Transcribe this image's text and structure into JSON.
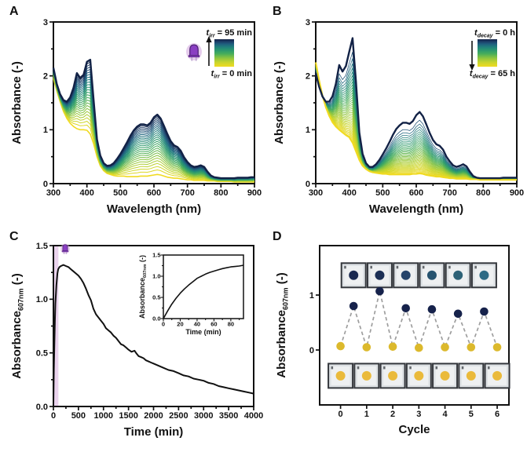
{
  "panels": {
    "a": {
      "letter": "A"
    },
    "b": {
      "letter": "B"
    },
    "c": {
      "letter": "C"
    },
    "d": {
      "letter": "D"
    }
  },
  "colors": {
    "axis": "#111111",
    "curve_black": "#111111",
    "dash_gray": "#9e9e9e",
    "dark_dot": "#16224b",
    "yellow_dot": "#dcb92c",
    "band_purple": "#d9aede",
    "led_body": "#8a3fc2",
    "led_outline": "#4f2376",
    "led_glow": "#cfa3dd",
    "photo_frame": "#34373c",
    "photo_bg": "#dde1e4",
    "photo_inner": "#eef0f1",
    "colormap_stops": [
      [
        0.0,
        "#f0da21"
      ],
      [
        0.16,
        "#c8d52c"
      ],
      [
        0.32,
        "#8ac441"
      ],
      [
        0.47,
        "#47ad5b"
      ],
      [
        0.6,
        "#2b986e"
      ],
      [
        0.72,
        "#207f7c"
      ],
      [
        0.83,
        "#1f5d7e"
      ],
      [
        0.92,
        "#1b3c66"
      ],
      [
        1.0,
        "#122246"
      ]
    ]
  },
  "chart_data": [
    {
      "id": "A",
      "type": "line",
      "mode": "growth",
      "xlabel": "Wavelength (nm)",
      "ylabel_main": "Absorbance",
      "ylabel_sub": "",
      "ylabel_tail": "(-)",
      "xlim": [
        300,
        900
      ],
      "ylim": [
        0,
        3
      ],
      "xticks": {
        "values": [
          300,
          400,
          500,
          600,
          700,
          800,
          900
        ],
        "labels": [
          "300",
          "400",
          "500",
          "600",
          "700",
          "800",
          "900"
        ]
      },
      "yticks": {
        "values": [
          0,
          1,
          2,
          3
        ],
        "labels": [
          "0",
          "1",
          "2",
          "3"
        ]
      },
      "xminor": 50,
      "yminor": 0.5,
      "legend": {
        "var": "t",
        "sub": "irr",
        "top_value": "= 95 min",
        "bottom_value": "= 0 min",
        "arrow": "up",
        "led": true
      },
      "n_curves": 26,
      "gamma": 0.8,
      "wavelengths": [
        300,
        310,
        320,
        330,
        340,
        350,
        360,
        370,
        380,
        390,
        400,
        410,
        420,
        430,
        440,
        450,
        460,
        470,
        480,
        490,
        500,
        510,
        520,
        530,
        540,
        550,
        560,
        570,
        580,
        590,
        600,
        610,
        620,
        630,
        640,
        650,
        660,
        670,
        680,
        690,
        700,
        710,
        720,
        730,
        740,
        750,
        760,
        770,
        780,
        790,
        800,
        810,
        820,
        830,
        840,
        850,
        860,
        870,
        880,
        890,
        900
      ],
      "spectrum_initial": [
        1.95,
        1.72,
        1.52,
        1.34,
        1.21,
        1.12,
        1.06,
        1.02,
        1.0,
        1.0,
        0.99,
        0.92,
        0.74,
        0.5,
        0.33,
        0.24,
        0.19,
        0.17,
        0.15,
        0.14,
        0.14,
        0.14,
        0.13,
        0.13,
        0.13,
        0.13,
        0.14,
        0.14,
        0.14,
        0.15,
        0.16,
        0.17,
        0.16,
        0.14,
        0.12,
        0.11,
        0.1,
        0.1,
        0.09,
        0.08,
        0.07,
        0.07,
        0.06,
        0.06,
        0.06,
        0.06,
        0.05,
        0.05,
        0.05,
        0.04,
        0.04,
        0.04,
        0.04,
        0.04,
        0.03,
        0.03,
        0.03,
        0.03,
        0.03,
        0.03,
        0.03
      ],
      "spectrum_final": [
        2.15,
        1.85,
        1.66,
        1.55,
        1.52,
        1.6,
        1.78,
        2.05,
        1.96,
        2.02,
        2.26,
        2.3,
        1.55,
        0.82,
        0.52,
        0.38,
        0.33,
        0.34,
        0.38,
        0.46,
        0.55,
        0.66,
        0.77,
        0.89,
        0.99,
        1.06,
        1.1,
        1.1,
        1.08,
        1.13,
        1.23,
        1.28,
        1.21,
        1.07,
        0.92,
        0.79,
        0.71,
        0.68,
        0.61,
        0.49,
        0.4,
        0.34,
        0.31,
        0.32,
        0.34,
        0.31,
        0.22,
        0.15,
        0.12,
        0.11,
        0.1,
        0.1,
        0.1,
        0.1,
        0.1,
        0.11,
        0.11,
        0.11,
        0.11,
        0.12,
        0.12
      ]
    },
    {
      "id": "B",
      "type": "line",
      "mode": "decay",
      "xlabel": "Wavelength (nm)",
      "ylabel_main": "Absorbance",
      "ylabel_sub": "",
      "ylabel_tail": "(-)",
      "xlim": [
        300,
        900
      ],
      "ylim": [
        0,
        3
      ],
      "xticks": {
        "values": [
          300,
          400,
          500,
          600,
          700,
          800,
          900
        ],
        "labels": [
          "300",
          "400",
          "500",
          "600",
          "700",
          "800",
          "900"
        ]
      },
      "yticks": {
        "values": [
          0,
          1,
          2,
          3
        ],
        "labels": [
          "0",
          "1",
          "2",
          "3"
        ]
      },
      "xminor": 50,
      "yminor": 0.5,
      "legend": {
        "var": "t",
        "sub": "decay",
        "top_value": "= 0 h",
        "bottom_value": "= 65 h",
        "arrow": "down",
        "led": false
      },
      "n_curves": 40,
      "gamma": 0.55,
      "wavelengths": [
        300,
        310,
        320,
        330,
        340,
        350,
        360,
        370,
        380,
        390,
        400,
        410,
        420,
        430,
        440,
        450,
        460,
        470,
        480,
        490,
        500,
        510,
        520,
        530,
        540,
        550,
        560,
        570,
        580,
        590,
        600,
        610,
        620,
        630,
        640,
        650,
        660,
        670,
        680,
        690,
        700,
        710,
        720,
        730,
        740,
        750,
        760,
        770,
        780,
        790,
        800,
        810,
        820,
        830,
        840,
        850,
        860,
        870,
        880,
        890,
        900
      ],
      "spectrum_initial": [
        2.05,
        1.8,
        1.62,
        1.52,
        1.52,
        1.62,
        1.85,
        2.2,
        2.08,
        2.18,
        2.45,
        2.7,
        1.9,
        0.95,
        0.55,
        0.38,
        0.31,
        0.31,
        0.36,
        0.44,
        0.54,
        0.65,
        0.77,
        0.9,
        1.01,
        1.08,
        1.13,
        1.13,
        1.11,
        1.16,
        1.27,
        1.33,
        1.25,
        1.1,
        0.94,
        0.81,
        0.73,
        0.7,
        0.63,
        0.5,
        0.41,
        0.34,
        0.31,
        0.33,
        0.36,
        0.32,
        0.22,
        0.14,
        0.11,
        0.1,
        0.1,
        0.1,
        0.1,
        0.1,
        0.1,
        0.1,
        0.11,
        0.11,
        0.11,
        0.11,
        0.11
      ],
      "spectrum_final": [
        2.25,
        1.92,
        1.64,
        1.42,
        1.26,
        1.14,
        1.06,
        1.0,
        0.95,
        0.9,
        0.86,
        0.76,
        0.6,
        0.44,
        0.33,
        0.27,
        0.23,
        0.21,
        0.2,
        0.19,
        0.18,
        0.18,
        0.17,
        0.17,
        0.17,
        0.17,
        0.17,
        0.17,
        0.17,
        0.18,
        0.18,
        0.19,
        0.18,
        0.16,
        0.15,
        0.14,
        0.13,
        0.13,
        0.12,
        0.11,
        0.1,
        0.1,
        0.09,
        0.09,
        0.09,
        0.09,
        0.08,
        0.08,
        0.08,
        0.07,
        0.07,
        0.07,
        0.07,
        0.07,
        0.07,
        0.07,
        0.07,
        0.07,
        0.07,
        0.07,
        0.07
      ]
    },
    {
      "id": "C",
      "type": "line",
      "xlabel": "Time (min)",
      "ylabel_main": "Absorbance",
      "ylabel_sub": "607nm",
      "ylabel_tail": "(-)",
      "xlim": [
        0,
        4000
      ],
      "ylim": [
        0,
        1.5
      ],
      "xticks": {
        "values": [
          0,
          500,
          1000,
          1500,
          2000,
          2500,
          3000,
          3500,
          4000
        ],
        "labels": [
          "0",
          "500",
          "1000",
          "1500",
          "2000",
          "2500",
          "3000",
          "3500",
          "4000"
        ]
      },
      "yticks": {
        "values": [
          0,
          0.5,
          1,
          1.5
        ],
        "labels": [
          "0.0",
          "0.5",
          "1.0",
          "1.5"
        ]
      },
      "xminor": 250,
      "yminor": 0.25,
      "irradiation_band_min": [
        0,
        100
      ],
      "series": {
        "x": [
          0,
          10,
          20,
          30,
          40,
          50,
          60,
          70,
          80,
          95,
          120,
          150,
          200,
          250,
          300,
          350,
          400,
          450,
          500,
          550,
          600,
          650,
          700,
          750,
          800,
          850,
          900,
          950,
          1000,
          1050,
          1100,
          1150,
          1200,
          1250,
          1300,
          1350,
          1400,
          1450,
          1500,
          1560,
          1620,
          1650,
          1700,
          1750,
          1800,
          1850,
          1900,
          1950,
          2000,
          2100,
          2200,
          2300,
          2400,
          2500,
          2600,
          2700,
          2800,
          2900,
          3000,
          3100,
          3200,
          3300,
          3400,
          3500,
          3600,
          3700,
          3800,
          3900,
          4000
        ],
        "y": [
          0.02,
          0.35,
          0.6,
          0.8,
          0.96,
          1.05,
          1.13,
          1.19,
          1.24,
          1.28,
          1.3,
          1.31,
          1.32,
          1.31,
          1.3,
          1.28,
          1.26,
          1.24,
          1.22,
          1.19,
          1.15,
          1.1,
          1.04,
          0.99,
          0.91,
          0.86,
          0.83,
          0.8,
          0.77,
          0.73,
          0.71,
          0.69,
          0.66,
          0.64,
          0.61,
          0.58,
          0.57,
          0.55,
          0.53,
          0.51,
          0.52,
          0.5,
          0.47,
          0.46,
          0.45,
          0.43,
          0.42,
          0.41,
          0.4,
          0.38,
          0.36,
          0.34,
          0.33,
          0.31,
          0.29,
          0.28,
          0.26,
          0.25,
          0.24,
          0.22,
          0.21,
          0.19,
          0.18,
          0.17,
          0.16,
          0.15,
          0.14,
          0.13,
          0.12
        ]
      },
      "inset": {
        "xlabel": "Time (min)",
        "ylabel_main": "Absorbance",
        "ylabel_sub": "607nm",
        "ylabel_tail": "(-)",
        "xlim": [
          0,
          95
        ],
        "ylim": [
          0,
          1.5
        ],
        "xticks": {
          "values": [
            0,
            20,
            40,
            60,
            80
          ],
          "labels": [
            "0",
            "20",
            "40",
            "60",
            "80"
          ]
        },
        "yticks": {
          "values": [
            0,
            0.5,
            1,
            1.5
          ],
          "labels": [
            "0.0",
            "0.5",
            "1.0",
            "1.5"
          ]
        },
        "xminor": 10,
        "yminor": 0.25,
        "series": {
          "x": [
            0,
            5,
            10,
            15,
            20,
            25,
            30,
            35,
            40,
            45,
            50,
            55,
            60,
            65,
            70,
            75,
            80,
            85,
            90,
            95
          ],
          "y": [
            0.0,
            0.18,
            0.34,
            0.48,
            0.6,
            0.7,
            0.79,
            0.87,
            0.95,
            1.0,
            1.05,
            1.09,
            1.12,
            1.15,
            1.18,
            1.2,
            1.22,
            1.23,
            1.24,
            1.26
          ]
        }
      }
    },
    {
      "id": "D",
      "type": "scatter",
      "xlabel": "Cycle",
      "ylabel_main": "Absorbance",
      "ylabel_sub": "607nm",
      "ylabel_tail": "(-)",
      "xlim": [
        -0.8,
        6.45
      ],
      "ylim": [
        -1.0,
        1.9
      ],
      "xticks": {
        "values": [
          0,
          1,
          2,
          3,
          4,
          5,
          6
        ],
        "labels": [
          "0",
          "1",
          "2",
          "3",
          "4",
          "5",
          "6"
        ]
      },
      "yticks": {
        "values": [
          0,
          1
        ],
        "labels": [
          "0",
          "1"
        ]
      },
      "dark_points": {
        "x": [
          0.5,
          1.5,
          2.5,
          3.5,
          4.5,
          5.5
        ],
        "y": [
          0.8,
          1.07,
          0.76,
          0.74,
          0.66,
          0.7
        ],
        "color": "#16224b"
      },
      "yellow_points": {
        "x": [
          0,
          1,
          2,
          3,
          4,
          5,
          6
        ],
        "y": [
          0.07,
          0.05,
          0.06,
          0.04,
          0.05,
          0.05,
          0.05
        ],
        "color": "#dcb92c"
      },
      "photos_top": {
        "x": [
          0.5,
          1.5,
          2.5,
          3.5,
          4.5,
          5.5
        ],
        "y_center": 1.36,
        "dot_colors": [
          "#1a2950",
          "#1c2f55",
          "#24436a",
          "#26536f",
          "#2d6277",
          "#2e6b85"
        ]
      },
      "photos_bottom": {
        "x": [
          0,
          1,
          2,
          3,
          4,
          5,
          6
        ],
        "y_center": -0.47,
        "dot_color": "#eaba3b"
      }
    }
  ]
}
